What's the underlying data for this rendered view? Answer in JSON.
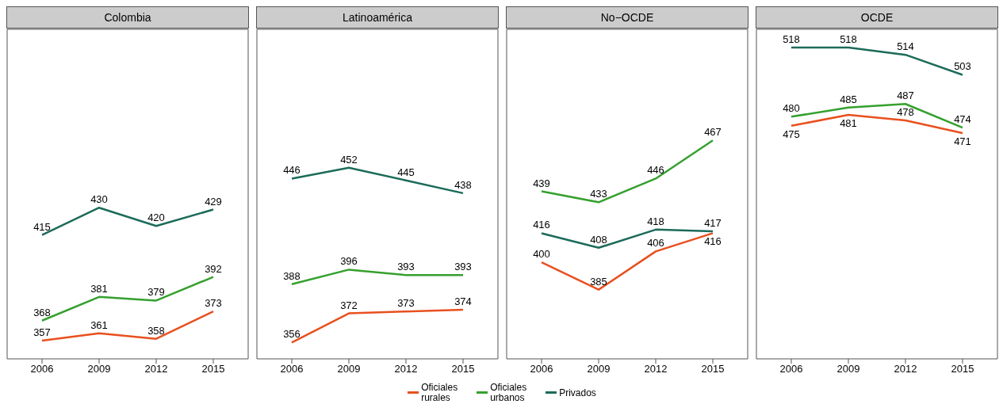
{
  "chart_data": [
    {
      "type": "line",
      "title": "Colombia",
      "categories": [
        "2006",
        "2009",
        "2012",
        "2015"
      ],
      "ylim": [
        347,
        528
      ],
      "tick_labels": "x",
      "data_labels": true,
      "legend": "bottom",
      "series": [
        {
          "name": "Oficiales rurales",
          "color": "#e8501f",
          "values": [
            357,
            361,
            358,
            373
          ]
        },
        {
          "name": "Oficiales urbanos",
          "color": "#35a02e",
          "values": [
            368,
            381,
            379,
            392
          ]
        },
        {
          "name": "Privados",
          "color": "#1c6b5a",
          "values": [
            415,
            430,
            420,
            429
          ]
        }
      ]
    },
    {
      "type": "line",
      "title": "Latinoamérica",
      "categories": [
        "2006",
        "2009",
        "2012",
        "2015"
      ],
      "ylim": [
        347,
        528
      ],
      "tick_labels": "x",
      "data_labels": true,
      "series": [
        {
          "color": "#e8501f",
          "values": [
            356,
            372,
            373,
            374
          ]
        },
        {
          "color": "#35a02e",
          "values": [
            388,
            396,
            393,
            393
          ]
        },
        {
          "color": "#1c6b5a",
          "values": [
            446,
            452,
            445,
            438
          ]
        }
      ]
    },
    {
      "type": "line",
      "title": "No−OCDE",
      "categories": [
        "2006",
        "2009",
        "2012",
        "2015"
      ],
      "ylim": [
        347,
        528
      ],
      "tick_labels": "x",
      "data_labels": true,
      "series": [
        {
          "color": "#e8501f",
          "values": [
            400,
            385,
            406,
            416
          ]
        },
        {
          "color": "#35a02e",
          "values": [
            439,
            433,
            446,
            467
          ]
        },
        {
          "color": "#1c6b5a",
          "values": [
            416,
            408,
            418,
            417
          ]
        }
      ]
    },
    {
      "type": "line",
      "title": "OCDE",
      "categories": [
        "2006",
        "2009",
        "2012",
        "2015"
      ],
      "ylim": [
        347,
        528
      ],
      "tick_labels": "x",
      "data_labels": true,
      "series": [
        {
          "color": "#e8501f",
          "values": [
            475,
            481,
            478,
            471
          ]
        },
        {
          "color": "#35a02e",
          "values": [
            480,
            485,
            487,
            474
          ]
        },
        {
          "color": "#1c6b5a",
          "values": [
            518,
            518,
            514,
            503
          ]
        }
      ]
    }
  ]
}
